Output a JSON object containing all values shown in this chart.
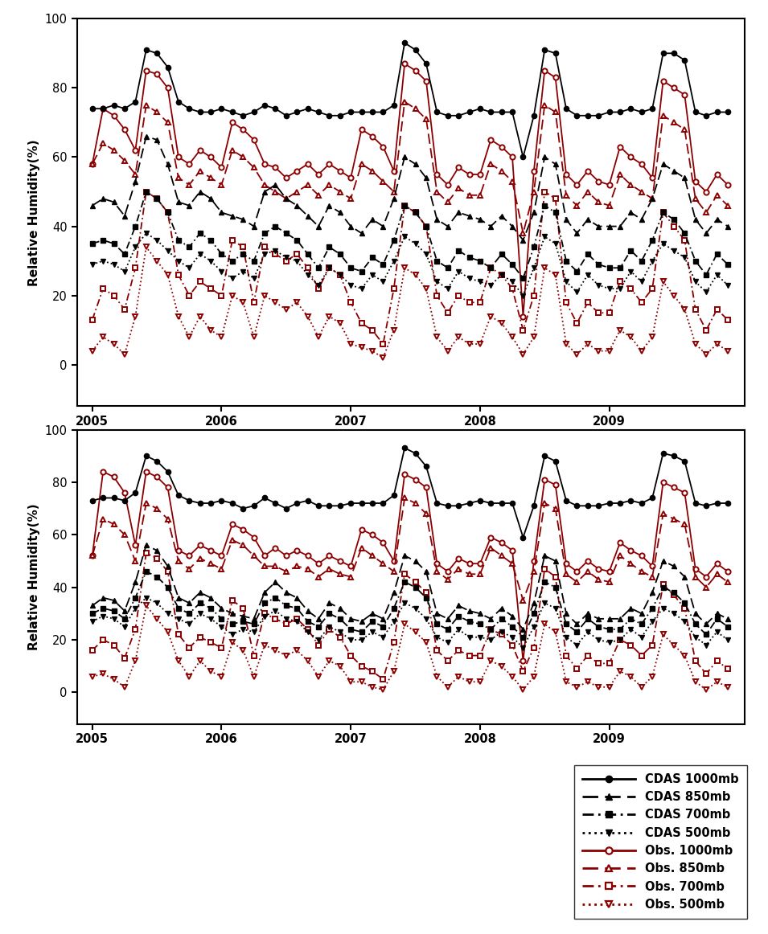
{
  "black": "#000000",
  "red": "#8B0000",
  "ylim": [
    -12,
    100
  ],
  "yticks": [
    0,
    20,
    40,
    60,
    80,
    100
  ],
  "xticks": [
    2005,
    2006,
    2007,
    2008,
    2009
  ],
  "ylabel": "Relative Humidity(%)",
  "legend_labels": [
    "CDAS 1000mb",
    "CDAS 850mb",
    "CDAS 700mb",
    "CDAS 500mb",
    "Obs. 1000mb",
    "Obs. 850mb",
    "Obs. 700mb",
    "Obs. 500mb"
  ],
  "panel1": {
    "cdas_1000": [
      74,
      74,
      75,
      74,
      76,
      91,
      90,
      86,
      76,
      74,
      73,
      73,
      74,
      73,
      72,
      73,
      75,
      74,
      72,
      73,
      74,
      73,
      72,
      72,
      73,
      73,
      73,
      73,
      75,
      93,
      91,
      87,
      73,
      72,
      72,
      73,
      74,
      73,
      73,
      73,
      60,
      72,
      91,
      90,
      74,
      72,
      72,
      72,
      73,
      73,
      74,
      73,
      74,
      90,
      90,
      88,
      73,
      72,
      73,
      73
    ],
    "cdas_850": [
      46,
      48,
      47,
      43,
      53,
      66,
      65,
      58,
      47,
      46,
      50,
      48,
      44,
      43,
      42,
      40,
      50,
      52,
      48,
      46,
      43,
      40,
      46,
      44,
      40,
      38,
      42,
      40,
      48,
      60,
      58,
      54,
      42,
      40,
      44,
      43,
      42,
      40,
      43,
      40,
      36,
      44,
      60,
      58,
      42,
      38,
      42,
      40,
      40,
      40,
      44,
      42,
      48,
      58,
      56,
      54,
      42,
      38,
      42,
      40
    ],
    "cdas_700": [
      35,
      36,
      35,
      32,
      40,
      50,
      48,
      44,
      36,
      34,
      38,
      36,
      32,
      30,
      32,
      30,
      38,
      40,
      38,
      36,
      32,
      28,
      34,
      32,
      28,
      27,
      31,
      29,
      36,
      46,
      44,
      40,
      30,
      28,
      33,
      31,
      30,
      28,
      32,
      29,
      25,
      34,
      46,
      44,
      30,
      27,
      32,
      29,
      28,
      28,
      33,
      30,
      36,
      44,
      42,
      38,
      30,
      26,
      32,
      29
    ],
    "cdas_500": [
      29,
      30,
      29,
      27,
      34,
      38,
      36,
      33,
      30,
      28,
      32,
      30,
      27,
      25,
      27,
      25,
      32,
      33,
      31,
      30,
      26,
      23,
      28,
      26,
      23,
      22,
      26,
      24,
      30,
      37,
      35,
      32,
      24,
      22,
      27,
      25,
      24,
      23,
      26,
      24,
      20,
      28,
      37,
      35,
      24,
      21,
      26,
      23,
      22,
      22,
      27,
      24,
      30,
      35,
      33,
      31,
      24,
      21,
      26,
      23
    ],
    "obs_1000": [
      58,
      74,
      72,
      68,
      62,
      85,
      84,
      80,
      60,
      58,
      62,
      60,
      57,
      70,
      68,
      65,
      58,
      57,
      54,
      56,
      58,
      55,
      58,
      56,
      54,
      68,
      66,
      63,
      56,
      87,
      85,
      82,
      55,
      52,
      57,
      55,
      55,
      65,
      63,
      60,
      14,
      56,
      85,
      83,
      55,
      52,
      56,
      53,
      52,
      63,
      60,
      58,
      54,
      82,
      80,
      78,
      53,
      50,
      55,
      52
    ],
    "obs_850": [
      58,
      64,
      62,
      59,
      55,
      75,
      73,
      70,
      54,
      52,
      56,
      54,
      52,
      62,
      60,
      57,
      52,
      50,
      48,
      50,
      52,
      49,
      52,
      50,
      48,
      58,
      56,
      53,
      50,
      76,
      74,
      71,
      50,
      47,
      51,
      49,
      49,
      58,
      56,
      53,
      38,
      50,
      75,
      73,
      49,
      46,
      50,
      47,
      46,
      55,
      52,
      50,
      48,
      72,
      70,
      68,
      48,
      44,
      49,
      46
    ],
    "obs_700": [
      13,
      22,
      20,
      16,
      28,
      50,
      48,
      44,
      26,
      20,
      24,
      22,
      20,
      36,
      34,
      18,
      34,
      32,
      30,
      32,
      28,
      22,
      28,
      26,
      18,
      12,
      10,
      6,
      22,
      46,
      44,
      40,
      20,
      15,
      20,
      18,
      18,
      28,
      26,
      22,
      10,
      20,
      50,
      48,
      18,
      12,
      18,
      15,
      15,
      24,
      22,
      18,
      22,
      44,
      40,
      36,
      16,
      10,
      16,
      13
    ],
    "obs_500": [
      4,
      8,
      6,
      3,
      14,
      34,
      30,
      26,
      14,
      8,
      14,
      10,
      8,
      20,
      18,
      8,
      20,
      18,
      16,
      18,
      14,
      8,
      14,
      12,
      6,
      5,
      4,
      2,
      10,
      28,
      26,
      22,
      8,
      4,
      8,
      6,
      6,
      14,
      12,
      8,
      3,
      8,
      28,
      26,
      6,
      3,
      6,
      4,
      4,
      10,
      8,
      4,
      8,
      24,
      20,
      16,
      6,
      3,
      6,
      4
    ]
  },
  "panel2": {
    "cdas_1000": [
      73,
      74,
      74,
      73,
      76,
      90,
      88,
      84,
      75,
      73,
      72,
      72,
      73,
      72,
      70,
      71,
      74,
      72,
      70,
      72,
      73,
      71,
      71,
      71,
      72,
      72,
      72,
      72,
      75,
      93,
      91,
      86,
      72,
      71,
      71,
      72,
      73,
      72,
      72,
      72,
      59,
      71,
      90,
      88,
      73,
      71,
      71,
      71,
      72,
      72,
      73,
      72,
      74,
      91,
      90,
      88,
      72,
      71,
      72,
      72
    ],
    "cdas_850": [
      33,
      36,
      35,
      31,
      42,
      56,
      54,
      48,
      36,
      34,
      38,
      36,
      32,
      30,
      29,
      28,
      38,
      42,
      38,
      36,
      31,
      28,
      34,
      32,
      28,
      27,
      30,
      28,
      38,
      52,
      50,
      46,
      30,
      28,
      33,
      31,
      30,
      28,
      32,
      29,
      24,
      34,
      52,
      50,
      30,
      26,
      30,
      28,
      28,
      28,
      32,
      30,
      38,
      50,
      48,
      44,
      30,
      26,
      30,
      28
    ],
    "cdas_700": [
      30,
      32,
      31,
      28,
      36,
      46,
      44,
      40,
      32,
      30,
      34,
      32,
      28,
      26,
      27,
      26,
      34,
      36,
      33,
      32,
      27,
      25,
      30,
      28,
      24,
      23,
      27,
      25,
      32,
      42,
      40,
      36,
      26,
      24,
      29,
      27,
      26,
      24,
      28,
      25,
      21,
      30,
      42,
      40,
      26,
      23,
      28,
      25,
      24,
      24,
      28,
      26,
      32,
      40,
      38,
      34,
      26,
      22,
      28,
      25
    ],
    "cdas_500": [
      27,
      29,
      28,
      25,
      32,
      36,
      34,
      30,
      28,
      26,
      30,
      28,
      25,
      22,
      24,
      23,
      29,
      31,
      28,
      27,
      23,
      20,
      25,
      23,
      20,
      20,
      23,
      21,
      27,
      34,
      32,
      28,
      21,
      19,
      24,
      21,
      21,
      20,
      23,
      21,
      17,
      25,
      34,
      32,
      21,
      18,
      23,
      20,
      19,
      20,
      24,
      21,
      27,
      32,
      30,
      27,
      21,
      18,
      23,
      20
    ],
    "obs_1000": [
      52,
      84,
      82,
      76,
      56,
      84,
      82,
      78,
      54,
      52,
      56,
      54,
      52,
      64,
      62,
      59,
      52,
      55,
      52,
      54,
      52,
      49,
      52,
      50,
      48,
      62,
      60,
      57,
      50,
      83,
      81,
      78,
      49,
      46,
      51,
      49,
      49,
      59,
      57,
      54,
      12,
      50,
      81,
      79,
      49,
      46,
      50,
      47,
      46,
      57,
      54,
      52,
      48,
      80,
      78,
      76,
      47,
      44,
      49,
      46
    ],
    "obs_850": [
      52,
      66,
      64,
      60,
      50,
      72,
      70,
      66,
      50,
      47,
      51,
      49,
      47,
      58,
      56,
      52,
      48,
      48,
      46,
      48,
      47,
      44,
      47,
      45,
      44,
      55,
      52,
      49,
      46,
      74,
      72,
      68,
      46,
      43,
      47,
      45,
      45,
      55,
      52,
      49,
      35,
      46,
      72,
      70,
      45,
      42,
      46,
      43,
      42,
      52,
      49,
      46,
      44,
      68,
      66,
      64,
      44,
      40,
      45,
      42
    ],
    "obs_700": [
      16,
      20,
      18,
      13,
      24,
      53,
      51,
      46,
      22,
      17,
      21,
      19,
      17,
      35,
      32,
      14,
      30,
      28,
      26,
      28,
      24,
      18,
      24,
      21,
      14,
      10,
      8,
      5,
      19,
      45,
      42,
      38,
      16,
      12,
      16,
      14,
      14,
      24,
      22,
      18,
      8,
      17,
      47,
      44,
      14,
      9,
      14,
      11,
      11,
      20,
      18,
      14,
      18,
      41,
      37,
      32,
      12,
      7,
      12,
      9
    ],
    "obs_500": [
      6,
      7,
      5,
      2,
      12,
      33,
      28,
      23,
      12,
      6,
      12,
      8,
      6,
      19,
      16,
      6,
      18,
      16,
      14,
      16,
      12,
      6,
      12,
      10,
      4,
      4,
      2,
      1,
      8,
      26,
      23,
      19,
      6,
      2,
      6,
      4,
      4,
      12,
      10,
      6,
      1,
      6,
      26,
      23,
      4,
      2,
      4,
      2,
      2,
      8,
      6,
      2,
      6,
      22,
      18,
      14,
      4,
      1,
      4,
      2
    ]
  }
}
